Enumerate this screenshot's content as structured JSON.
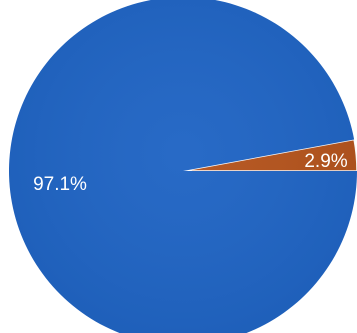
{
  "chart_data": {
    "type": "pie",
    "categories": [
      "",
      ""
    ],
    "values": [
      97.1,
      2.9
    ],
    "labels": [
      "97.1%",
      "2.9%"
    ],
    "colors": [
      "#1f64c4",
      "#b4531c"
    ],
    "start_angle_deg": 0,
    "direction": "clockwise",
    "legend": "none",
    "title": ""
  }
}
